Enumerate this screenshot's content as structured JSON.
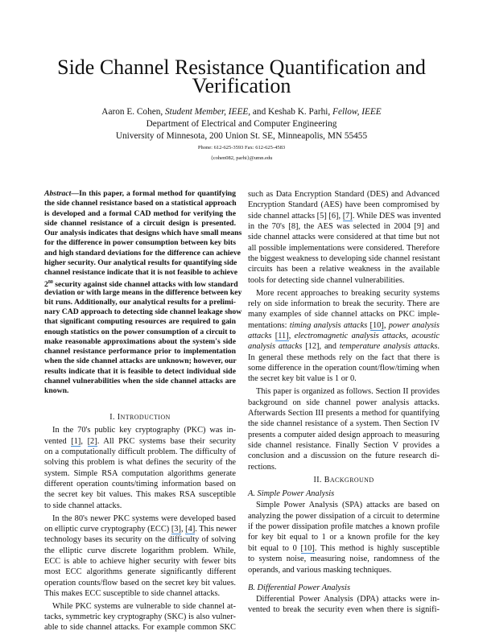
{
  "title_lines": [
    "Side Channel Resistance Quantification and",
    "Verification"
  ],
  "authors": {
    "name1": "Aaron E. Cohen, ",
    "role1": "Student Member, IEEE,",
    "and": " and Keshab K. Parhi, ",
    "role2": "Fellow, IEEE"
  },
  "affiliation": {
    "department": "Department of Electrical and Computer Engineering",
    "university": "University of Minnesota, 200 Union St. SE, Minneapolis, MN 55455",
    "phone": "Phone: 612-625-3593 Fax: 612-625-4583",
    "email": "{cohen082, parhi}@umn.edu"
  },
  "left_column": [
    {
      "kind": "abstract",
      "lines": [
        [
          {
            "t": "Abstract",
            "i": true
          },
          {
            "t": "—In this paper, a formal method for quantifying"
          }
        ],
        "the side channel resistance based on a statistical approach",
        "is developed and a formal CAD method for verifying the",
        "side channel resistance of a circuit design is presented.",
        "Our analysis indicates that designs which have small means",
        "for the difference in power consumption between key bits",
        "and high standard deviations for the difference can achieve",
        "higher security. Our analytical results for quantifying side",
        "channel resistance indicate that it is not feasible to achieve",
        [
          {
            "t": "2"
          },
          {
            "t": "80",
            "sup": true
          },
          {
            "t": " security against side channel attacks with low standard"
          }
        ],
        "deviation or with large means in the difference between key",
        "bit runs. Additionally, our analytical results for a prelimi-",
        "nary CAD approach to detecting side channel leakage show",
        "that significant computing resources are required to gain",
        "enough statistics on the power consumption of a circuit to",
        "make reasonable approximations about the system's side",
        "channel resistance performance prior to implementation",
        "when the side channel attacks are unknown; however, our",
        "results indicate that it is feasible to detect individual side",
        "channel vulnerabilities when the side channel attacks are",
        "known."
      ]
    },
    {
      "kind": "section",
      "num": "I. ",
      "first": "I",
      "rest": "NTRODUCTION"
    },
    {
      "kind": "para",
      "lines": [
        "In the 70's public key cryptography (PKC) was in-",
        [
          {
            "t": "vented "
          },
          {
            "t": "[1]",
            "link": true
          },
          {
            "t": ", "
          },
          {
            "t": "[2]",
            "link": true
          },
          {
            "t": ". All PKC systems base their security"
          }
        ],
        "on a computationally difficult problem. The difficulty of",
        "solving this problem is what defines the security of the",
        "system. Simple RSA computation algorithms generate",
        "different operation counts/timing information based on",
        "the secret key bit values. This makes RSA susceptible",
        "to side channel attacks."
      ]
    },
    {
      "kind": "para",
      "lines": [
        "In the 80's newer PKC systems were developed based",
        [
          {
            "t": "on elliptic curve cryptography (ECC) "
          },
          {
            "t": "[3]",
            "link": true
          },
          {
            "t": ", "
          },
          {
            "t": "[4]",
            "link": true
          },
          {
            "t": ". This newer"
          }
        ],
        "technology bases its security on the difficulty of solving",
        "the elliptic curve discrete logarithm problem. While,",
        "ECC is able to achieve higher security with fewer bits",
        "most ECC algorithms generate significantly different",
        "operation counts/flow based on the secret key bit values.",
        "This makes ECC susceptible to side channel attacks."
      ]
    },
    {
      "kind": "para",
      "lines": [
        "While PKC systems are vulnerable to side channel at-",
        "tacks, symmetric key cryptography (SKC) is also vulner-",
        "able to side channel attacks. For example common SKC"
      ],
      "continues": true
    }
  ],
  "right_column": [
    {
      "kind": "para",
      "noindent": true,
      "lines": [
        "such as Data Encryption Standard (DES) and Advanced",
        "Encryption Standard (AES) have been compromised by",
        [
          {
            "t": "side channel attacks [5] [6], "
          },
          {
            "t": "[7]",
            "link": true
          },
          {
            "t": ". While DES was invented"
          }
        ],
        "in the 70's [8], the AES was selected in 2004 [9] and",
        "side channel attacks were considered at that time but not",
        "all possible implementations were considered. Therefore",
        "the biggest weakness to developing side channel resistant",
        "circuits has been a relative weakness in the available",
        "tools for detecting side channel vulnerabilities."
      ]
    },
    {
      "kind": "para",
      "lines": [
        "More recent approaches to breaking security systems",
        "rely on side information to break the security. There are",
        "many examples of side channel attacks on PKC imple-",
        [
          {
            "t": "mentations: "
          },
          {
            "t": "timing analysis attacks",
            "i": true
          },
          {
            "t": " "
          },
          {
            "t": "[10]",
            "link": true
          },
          {
            "t": ", "
          },
          {
            "t": "power analysis",
            "i": true
          }
        ],
        [
          {
            "t": "attacks",
            "i": true
          },
          {
            "t": " "
          },
          {
            "t": "[11]",
            "link": true
          },
          {
            "t": ", "
          },
          {
            "t": "electromagnetic analysis attacks",
            "i": true
          },
          {
            "t": ", "
          },
          {
            "t": "acoustic",
            "i": true
          }
        ],
        [
          {
            "t": "analysis attacks",
            "i": true
          },
          {
            "t": " [12], and "
          },
          {
            "t": "temperature analysis attacks",
            "i": true
          },
          {
            "t": "."
          }
        ],
        "In general these methods rely on the fact that there is",
        "some difference in the operation count/flow/timing when",
        "the secret key bit value is 1 or 0."
      ]
    },
    {
      "kind": "para",
      "lines": [
        "This paper is organized as follows. Section II provides",
        "background on side channel power analysis attacks.",
        "Afterwards Section III presents a method for quantifying",
        "the side channel resistance of a system. Then Section IV",
        "presents a computer aided design approach to measuring",
        "side channel resistance. Finally Section V provides a",
        "conclusion and a discussion on the future research di-",
        "rections."
      ]
    },
    {
      "kind": "section",
      "num": "II. ",
      "first": "B",
      "rest": "ACKGROUND"
    },
    {
      "kind": "subsection",
      "text": "A.  Simple Power Analysis"
    },
    {
      "kind": "para",
      "lines": [
        "Simple Power Analysis (SPA) attacks are based on",
        "analyzing the power dissipation of a circuit to determine",
        "if the power dissipation profile matches a known profile",
        "for key bit equal to 1 or a known profile for the key",
        [
          {
            "t": "bit equal to 0 "
          },
          {
            "t": "[10]",
            "link": true
          },
          {
            "t": ". This method is highly susceptible"
          }
        ],
        "to system noise, measuring noise, randomness of the",
        "operands, and various masking techniques."
      ]
    },
    {
      "kind": "subsection",
      "text": "B.  Differential Power Analysis",
      "gap": true
    },
    {
      "kind": "para",
      "lines": [
        "Differential Power Analysis (DPA) attacks were in-",
        "vented to break the security even when there is signifi-"
      ],
      "continues": true
    }
  ],
  "colors": {
    "link_underline": "#4a90d9",
    "text": "#111111"
  }
}
